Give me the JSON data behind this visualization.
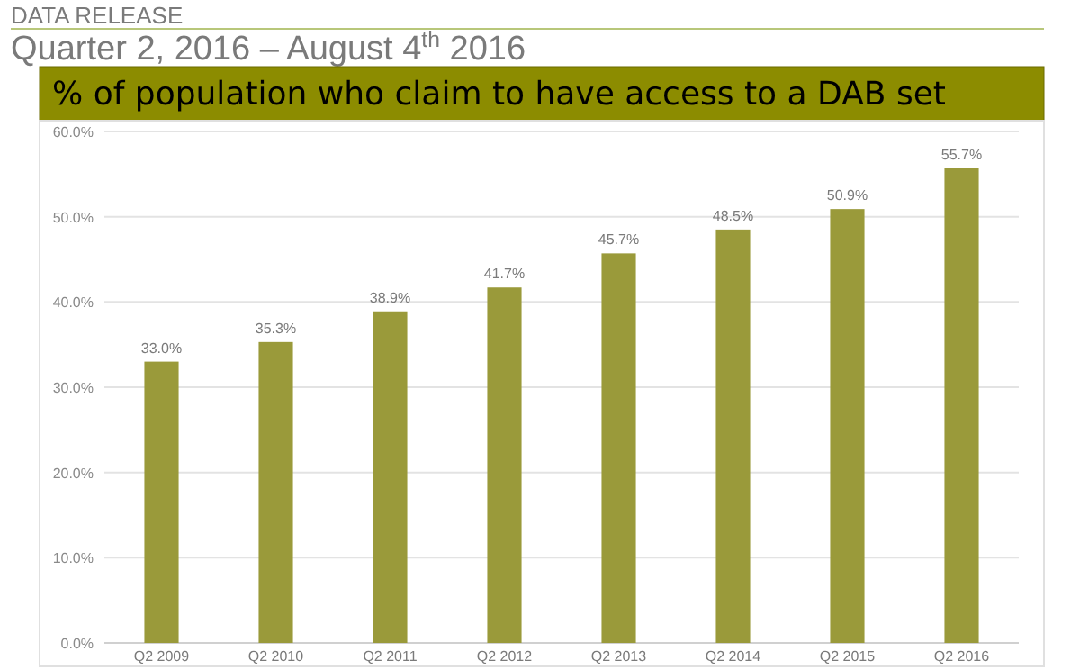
{
  "chart_data": {
    "type": "bar",
    "title": "% of population who claim to have access to a DAB set",
    "annotations": [
      "DATA RELEASE",
      "Quarter 2, 2016 – August 4$^{th}$ 2016"
    ],
    "categories": [
      "Q2 2009",
      "Q2 2010",
      "Q2 2011",
      "Q2 2012",
      "Q2 2013",
      "Q2 2014",
      "Q2 2015",
      "Q2 2016"
    ],
    "values": [
      33.0,
      35.3,
      38.9,
      41.7,
      45.7,
      48.5,
      50.9,
      55.7
    ],
    "value_labels": [
      "33.0%",
      "35.3%",
      "38.9%",
      "41.7%",
      "45.7%",
      "48.5%",
      "50.9%",
      "55.7%"
    ],
    "color": "#9a9a3a",
    "ylim": [
      0,
      60
    ],
    "yticks": [
      {
        "value": 0,
        "label": "0.0%"
      },
      {
        "value": 10,
        "label": "10.0%"
      },
      {
        "value": 20,
        "label": "20.0%"
      },
      {
        "value": 30,
        "label": "30.0%"
      },
      {
        "value": 40,
        "label": "40.0%"
      },
      {
        "value": 50,
        "label": "50.0%"
      },
      {
        "value": 60,
        "label": "60.0%"
      }
    ],
    "grid": "y"
  }
}
